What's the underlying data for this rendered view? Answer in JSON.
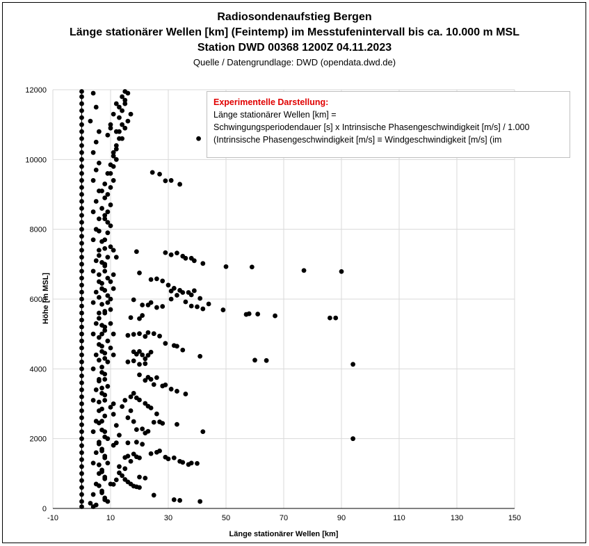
{
  "chart_data": {
    "type": "scatter",
    "title": "Radiosondenaufstieg Bergen",
    "subtitle_lines": [
      "Länge stationärer Wellen [km] (Feintemp) im Messtufenintervall bis ca. 10.000 m MSL",
      "Station DWD 00368 1200Z 04.11.2023"
    ],
    "source": "Quelle / Datengrundlage: DWD (opendata.dwd.de)",
    "xlabel": "Länge stationärer Wellen [km]",
    "ylabel": "Höhe [m MSL]",
    "xlim": [
      -10,
      150
    ],
    "ylim": [
      0,
      12000
    ],
    "x_ticks": [
      "-10",
      "10",
      "30",
      "50",
      "70",
      "90",
      "110",
      "130",
      "150"
    ],
    "y_ticks": [
      "0",
      "2000",
      "4000",
      "6000",
      "8000",
      "10000",
      "12000"
    ],
    "grid": true,
    "marker_color": "#000000",
    "annotation": {
      "heading": "Experimentelle Darstellung:",
      "lines": [
        "Länge stationärer Wellen [km] =",
        "Schwingungsperiodendauer [s] x Intrinsische Phasengeschwindigkeit [m/s]  / 1.000",
        "(Intrinsische Phasengeschwindigkeit [m/s] ≡ Windgeschwindigkeit [m/s] (im"
      ]
    },
    "points": [
      [
        40.5,
        10600
      ],
      [
        24.5,
        9630
      ],
      [
        27,
        9580
      ],
      [
        29,
        9390
      ],
      [
        31,
        9400
      ],
      [
        34,
        9290
      ],
      [
        19,
        7360
      ],
      [
        29,
        7330
      ],
      [
        31,
        7270
      ],
      [
        33,
        7320
      ],
      [
        35,
        7230
      ],
      [
        36,
        7170
      ],
      [
        38,
        7170
      ],
      [
        39,
        7100
      ],
      [
        42,
        7020
      ],
      [
        50,
        6930
      ],
      [
        59,
        6920
      ],
      [
        77,
        6820
      ],
      [
        90,
        6790
      ],
      [
        20,
        6750
      ],
      [
        24,
        6560
      ],
      [
        26,
        6580
      ],
      [
        28,
        6520
      ],
      [
        30,
        6400
      ],
      [
        31,
        6230
      ],
      [
        32,
        6310
      ],
      [
        34,
        6250
      ],
      [
        35,
        6190
      ],
      [
        37,
        6190
      ],
      [
        38,
        6120
      ],
      [
        39,
        6240
      ],
      [
        41,
        6020
      ],
      [
        18,
        5980
      ],
      [
        21,
        5830
      ],
      [
        23,
        5830
      ],
      [
        24,
        5900
      ],
      [
        26,
        5760
      ],
      [
        28,
        5790
      ],
      [
        31,
        6000
      ],
      [
        33,
        6110
      ],
      [
        36,
        5920
      ],
      [
        38,
        5800
      ],
      [
        40,
        5780
      ],
      [
        42,
        5720
      ],
      [
        44,
        5860
      ],
      [
        49,
        5690
      ],
      [
        57,
        5560
      ],
      [
        58,
        5580
      ],
      [
        61,
        5570
      ],
      [
        67,
        5520
      ],
      [
        86,
        5460
      ],
      [
        88,
        5460
      ],
      [
        17,
        5470
      ],
      [
        20,
        5440
      ],
      [
        21,
        5530
      ],
      [
        16,
        4960
      ],
      [
        18,
        4990
      ],
      [
        20,
        5010
      ],
      [
        22,
        4930
      ],
      [
        23,
        5040
      ],
      [
        25,
        5010
      ],
      [
        27,
        4940
      ],
      [
        29,
        4730
      ],
      [
        32,
        4670
      ],
      [
        33,
        4650
      ],
      [
        35,
        4540
      ],
      [
        41,
        4360
      ],
      [
        18,
        4490
      ],
      [
        19,
        4420
      ],
      [
        20,
        4500
      ],
      [
        21,
        4400
      ],
      [
        22,
        4290
      ],
      [
        23,
        4390
      ],
      [
        24,
        4480
      ],
      [
        16,
        4200
      ],
      [
        18,
        4230
      ],
      [
        20,
        4130
      ],
      [
        22,
        4150
      ],
      [
        60,
        4250
      ],
      [
        64,
        4240
      ],
      [
        94,
        4130
      ],
      [
        20,
        3830
      ],
      [
        22,
        3670
      ],
      [
        23,
        3760
      ],
      [
        24,
        3700
      ],
      [
        25,
        3550
      ],
      [
        26,
        3750
      ],
      [
        28,
        3510
      ],
      [
        29,
        3540
      ],
      [
        31,
        3420
      ],
      [
        33,
        3360
      ],
      [
        36,
        3280
      ],
      [
        18,
        3300
      ],
      [
        19,
        3170
      ],
      [
        20,
        3110
      ],
      [
        22,
        3010
      ],
      [
        23,
        2930
      ],
      [
        24,
        2880
      ],
      [
        26,
        2710
      ],
      [
        25,
        2470
      ],
      [
        27,
        2480
      ],
      [
        28,
        2440
      ],
      [
        33,
        2410
      ],
      [
        42,
        2200
      ],
      [
        94,
        2000
      ],
      [
        14,
        2920
      ],
      [
        15,
        3100
      ],
      [
        17,
        3200
      ],
      [
        17,
        2800
      ],
      [
        16,
        2600
      ],
      [
        18,
        2490
      ],
      [
        19,
        2260
      ],
      [
        21,
        2280
      ],
      [
        22,
        2160
      ],
      [
        23,
        2210
      ],
      [
        21,
        1840
      ],
      [
        19,
        1900
      ],
      [
        16,
        1880
      ],
      [
        15,
        1460
      ],
      [
        16,
        1500
      ],
      [
        17,
        1350
      ],
      [
        18,
        1560
      ],
      [
        19,
        1480
      ],
      [
        20,
        1450
      ],
      [
        24,
        1570
      ],
      [
        26,
        1610
      ],
      [
        27,
        1650
      ],
      [
        29,
        1470
      ],
      [
        30,
        1420
      ],
      [
        32,
        1450
      ],
      [
        34,
        1350
      ],
      [
        35,
        1320
      ],
      [
        37,
        1260
      ],
      [
        38,
        1300
      ],
      [
        40,
        1290
      ],
      [
        13,
        1020
      ],
      [
        14,
        940
      ],
      [
        15,
        830
      ],
      [
        16,
        760
      ],
      [
        17,
        700
      ],
      [
        18,
        640
      ],
      [
        19,
        620
      ],
      [
        20,
        900
      ],
      [
        22,
        870
      ],
      [
        20,
        600
      ],
      [
        25,
        380
      ],
      [
        32,
        250
      ],
      [
        34,
        230
      ],
      [
        41,
        200
      ],
      [
        9,
        200
      ],
      [
        10,
        700
      ],
      [
        11,
        690
      ],
      [
        12,
        820
      ],
      [
        13,
        1200
      ],
      [
        15,
        1140
      ],
      [
        11,
        1810
      ],
      [
        12,
        1880
      ],
      [
        13,
        2100
      ],
      [
        12,
        2380
      ],
      [
        11,
        2700
      ],
      [
        10,
        2900
      ],
      [
        11,
        3000
      ],
      [
        0,
        11950
      ],
      [
        0,
        11800
      ],
      [
        0,
        11600
      ],
      [
        0,
        11400
      ],
      [
        0,
        11200
      ],
      [
        0,
        11000
      ],
      [
        0,
        10800
      ],
      [
        0,
        10600
      ],
      [
        0,
        10400
      ],
      [
        0,
        10200
      ],
      [
        0,
        10000
      ],
      [
        0,
        9800
      ],
      [
        0,
        9600
      ],
      [
        0,
        9400
      ],
      [
        0,
        9200
      ],
      [
        0,
        9000
      ],
      [
        0,
        8800
      ],
      [
        0,
        8600
      ],
      [
        0,
        8400
      ],
      [
        0,
        8200
      ],
      [
        0,
        8000
      ],
      [
        0,
        7800
      ],
      [
        0,
        7600
      ],
      [
        0,
        7400
      ],
      [
        0,
        7200
      ],
      [
        0,
        7000
      ],
      [
        0,
        6800
      ],
      [
        0,
        6600
      ],
      [
        0,
        6400
      ],
      [
        0,
        6200
      ],
      [
        0,
        6000
      ],
      [
        0,
        5800
      ],
      [
        0,
        5600
      ],
      [
        0,
        5400
      ],
      [
        0,
        5200
      ],
      [
        0,
        5000
      ],
      [
        0,
        4800
      ],
      [
        0,
        4600
      ],
      [
        0,
        4400
      ],
      [
        0,
        4200
      ],
      [
        0,
        4000
      ],
      [
        0,
        3800
      ],
      [
        0,
        3600
      ],
      [
        0,
        3400
      ],
      [
        0,
        3200
      ],
      [
        0,
        3000
      ],
      [
        0,
        2800
      ],
      [
        0,
        2600
      ],
      [
        0,
        2400
      ],
      [
        0,
        2200
      ],
      [
        0,
        2000
      ],
      [
        0,
        1800
      ],
      [
        0,
        1600
      ],
      [
        0,
        1400
      ],
      [
        0,
        1200
      ],
      [
        0,
        1000
      ],
      [
        0,
        800
      ],
      [
        0,
        600
      ],
      [
        0,
        400
      ],
      [
        0,
        200
      ],
      [
        0,
        50
      ],
      [
        4,
        11900
      ],
      [
        5,
        11500
      ],
      [
        3,
        11100
      ],
      [
        6,
        10800
      ],
      [
        5,
        10500
      ],
      [
        4,
        10200
      ],
      [
        6,
        9900
      ],
      [
        5,
        9700
      ],
      [
        4,
        9400
      ],
      [
        6,
        9100
      ],
      [
        5,
        8800
      ],
      [
        4,
        8500
      ],
      [
        6,
        8300
      ],
      [
        5,
        8000
      ],
      [
        4,
        7700
      ],
      [
        6,
        7400
      ],
      [
        5,
        7100
      ],
      [
        4,
        6800
      ],
      [
        6,
        6500
      ],
      [
        5,
        6200
      ],
      [
        4,
        5900
      ],
      [
        6,
        5600
      ],
      [
        5,
        5300
      ],
      [
        4,
        5000
      ],
      [
        6,
        4700
      ],
      [
        5,
        4400
      ],
      [
        4,
        4000
      ],
      [
        6,
        3700
      ],
      [
        5,
        3400
      ],
      [
        4,
        3100
      ],
      [
        6,
        2800
      ],
      [
        5,
        2500
      ],
      [
        4,
        2200
      ],
      [
        6,
        1900
      ],
      [
        5,
        1600
      ],
      [
        4,
        1300
      ],
      [
        6,
        1000
      ],
      [
        5,
        700
      ],
      [
        4,
        400
      ],
      [
        5,
        100
      ],
      [
        9,
        5900
      ],
      [
        8,
        5600
      ],
      [
        8,
        5200
      ],
      [
        7,
        5000
      ],
      [
        9,
        4800
      ],
      [
        7,
        4500
      ],
      [
        8,
        4300
      ],
      [
        9,
        4200
      ],
      [
        7,
        3900
      ],
      [
        8,
        3700
      ],
      [
        9,
        3500
      ],
      [
        7,
        3300
      ],
      [
        8,
        3100
      ],
      [
        7,
        2500
      ],
      [
        8,
        2200
      ],
      [
        9,
        2000
      ],
      [
        7,
        1700
      ],
      [
        8,
        1500
      ],
      [
        9,
        1300
      ],
      [
        7,
        1100
      ],
      [
        8,
        900
      ],
      [
        7,
        500
      ],
      [
        8,
        300
      ],
      [
        8,
        6800
      ],
      [
        9,
        6600
      ],
      [
        10,
        6500
      ],
      [
        7,
        6300
      ],
      [
        9,
        6100
      ],
      [
        10,
        6000
      ],
      [
        8,
        7000
      ],
      [
        9,
        7200
      ],
      [
        10,
        7500
      ],
      [
        8,
        7700
      ],
      [
        9,
        7900
      ],
      [
        10,
        8100
      ],
      [
        8,
        8300
      ],
      [
        9,
        8500
      ],
      [
        10,
        8700
      ],
      [
        9,
        9000
      ],
      [
        10,
        9200
      ],
      [
        11,
        9400
      ],
      [
        10,
        9600
      ],
      [
        11,
        9800
      ],
      [
        12,
        10000
      ],
      [
        11,
        10200
      ],
      [
        12,
        10400
      ],
      [
        13,
        10600
      ],
      [
        12,
        10800
      ],
      [
        14,
        11000
      ],
      [
        13,
        11200
      ],
      [
        14,
        11400
      ],
      [
        15,
        11600
      ],
      [
        14,
        11800
      ],
      [
        15,
        11950
      ],
      [
        11,
        7400
      ],
      [
        12,
        7200
      ],
      [
        11,
        6700
      ],
      [
        11,
        6300
      ],
      [
        10,
        5700
      ],
      [
        10,
        5300
      ],
      [
        11,
        5000
      ],
      [
        10,
        4600
      ],
      [
        11,
        4400
      ],
      [
        15,
        10900
      ],
      [
        16,
        11100
      ],
      [
        17,
        11300
      ],
      [
        13,
        11500
      ],
      [
        15,
        11700
      ],
      [
        16,
        11900
      ],
      [
        12,
        11600
      ],
      [
        11,
        11300
      ],
      [
        10,
        11000
      ],
      [
        9,
        10700
      ],
      [
        10,
        10900
      ],
      [
        13,
        10800
      ],
      [
        14,
        10600
      ],
      [
        12,
        10300
      ],
      [
        11,
        10100
      ],
      [
        10,
        9850
      ],
      [
        9,
        9600
      ],
      [
        8,
        9300
      ],
      [
        7,
        9100
      ],
      [
        8,
        8900
      ],
      [
        7,
        8600
      ],
      [
        8,
        8400
      ],
      [
        9,
        8200
      ],
      [
        6,
        7950
      ],
      [
        7,
        7650
      ],
      [
        8,
        7450
      ],
      [
        6,
        7250
      ],
      [
        7,
        7050
      ],
      [
        8,
        6950
      ],
      [
        6,
        6700
      ],
      [
        7,
        6450
      ],
      [
        8,
        6250
      ],
      [
        6,
        6050
      ],
      [
        7,
        5850
      ],
      [
        8,
        5650
      ],
      [
        6,
        5450
      ],
      [
        7,
        5250
      ],
      [
        8,
        5100
      ],
      [
        6,
        4900
      ],
      [
        7,
        4650
      ],
      [
        8,
        4450
      ],
      [
        6,
        4250
      ],
      [
        7,
        4050
      ],
      [
        8,
        3850
      ],
      [
        6,
        3650
      ],
      [
        7,
        3450
      ],
      [
        8,
        3250
      ],
      [
        6,
        3050
      ],
      [
        7,
        2850
      ],
      [
        8,
        2650
      ],
      [
        6,
        2450
      ],
      [
        7,
        2250
      ],
      [
        8,
        2050
      ],
      [
        6,
        1850
      ],
      [
        7,
        1650
      ],
      [
        8,
        1450
      ],
      [
        6,
        1250
      ],
      [
        7,
        1050
      ],
      [
        8,
        850
      ],
      [
        6,
        650
      ],
      [
        7,
        450
      ],
      [
        8,
        250
      ],
      [
        3,
        150
      ],
      [
        4,
        50
      ]
    ]
  }
}
